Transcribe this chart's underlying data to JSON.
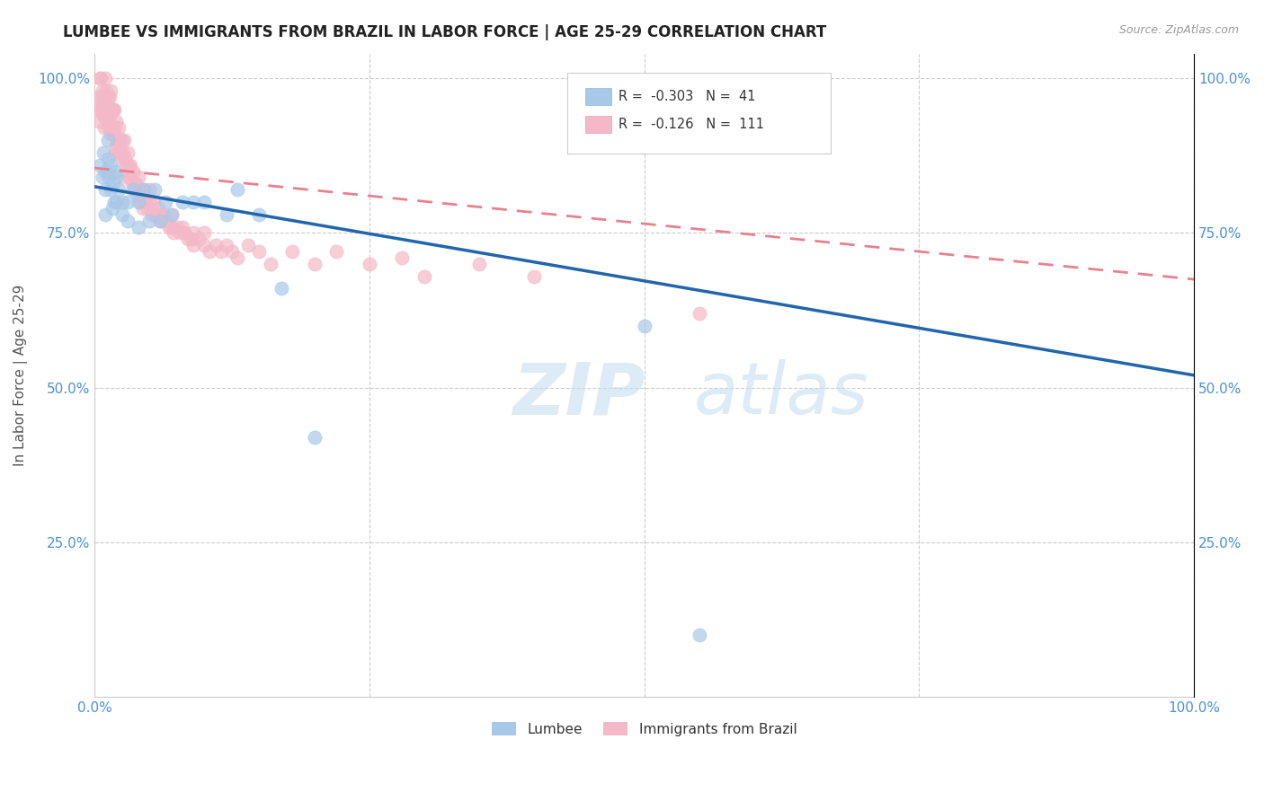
{
  "title": "LUMBEE VS IMMIGRANTS FROM BRAZIL IN LABOR FORCE | AGE 25-29 CORRELATION CHART",
  "source_text": "Source: ZipAtlas.com",
  "ylabel": "In Labor Force | Age 25-29",
  "xlim": [
    0.0,
    1.0
  ],
  "ylim": [
    0.0,
    1.04
  ],
  "x_ticks": [
    0.0,
    0.25,
    0.5,
    0.75,
    1.0
  ],
  "y_ticks": [
    0.0,
    0.25,
    0.5,
    0.75,
    1.0
  ],
  "x_tick_labels": [
    "0.0%",
    "",
    "",
    "",
    "100.0%"
  ],
  "y_tick_labels": [
    "",
    "25.0%",
    "50.0%",
    "75.0%",
    "100.0%"
  ],
  "lumbee_color": "#a8c8e8",
  "brazil_color": "#f4b8c8",
  "lumbee_line_color": "#2166ac",
  "brazil_line_color": "#f4b8c8",
  "lumbee_R": -0.303,
  "lumbee_N": 41,
  "brazil_R": -0.126,
  "brazil_N": 111,
  "legend_label_lumbee": "Lumbee",
  "legend_label_brazil": "Immigrants from Brazil",
  "lumbee_line_y0": 0.825,
  "lumbee_line_y1": 0.52,
  "brazil_line_y0": 0.855,
  "brazil_line_y1": 0.675,
  "lumbee_scatter_x": [
    0.005,
    0.007,
    0.008,
    0.01,
    0.01,
    0.01,
    0.012,
    0.012,
    0.013,
    0.015,
    0.015,
    0.016,
    0.017,
    0.018,
    0.019,
    0.02,
    0.02,
    0.022,
    0.025,
    0.025,
    0.03,
    0.03,
    0.035,
    0.04,
    0.04,
    0.045,
    0.05,
    0.055,
    0.06,
    0.065,
    0.07,
    0.08,
    0.09,
    0.1,
    0.12,
    0.13,
    0.15,
    0.17,
    0.2,
    0.5,
    0.55
  ],
  "lumbee_scatter_y": [
    0.86,
    0.84,
    0.88,
    0.85,
    0.82,
    0.78,
    0.9,
    0.87,
    0.84,
    0.86,
    0.82,
    0.79,
    0.83,
    0.8,
    0.85,
    0.84,
    0.8,
    0.82,
    0.8,
    0.78,
    0.8,
    0.77,
    0.82,
    0.8,
    0.76,
    0.82,
    0.77,
    0.82,
    0.77,
    0.8,
    0.78,
    0.8,
    0.8,
    0.8,
    0.78,
    0.82,
    0.78,
    0.66,
    0.42,
    0.6,
    0.1
  ],
  "brazil_scatter_x": [
    0.003,
    0.004,
    0.004,
    0.005,
    0.005,
    0.006,
    0.006,
    0.007,
    0.007,
    0.008,
    0.008,
    0.009,
    0.009,
    0.01,
    0.01,
    0.01,
    0.011,
    0.011,
    0.012,
    0.012,
    0.013,
    0.013,
    0.014,
    0.014,
    0.015,
    0.015,
    0.015,
    0.016,
    0.016,
    0.017,
    0.017,
    0.018,
    0.018,
    0.019,
    0.019,
    0.02,
    0.02,
    0.021,
    0.022,
    0.022,
    0.023,
    0.024,
    0.025,
    0.025,
    0.026,
    0.027,
    0.028,
    0.028,
    0.029,
    0.03,
    0.03,
    0.031,
    0.032,
    0.033,
    0.034,
    0.035,
    0.036,
    0.037,
    0.038,
    0.04,
    0.04,
    0.041,
    0.042,
    0.043,
    0.044,
    0.045,
    0.046,
    0.048,
    0.05,
    0.05,
    0.052,
    0.054,
    0.056,
    0.058,
    0.06,
    0.06,
    0.062,
    0.065,
    0.068,
    0.07,
    0.07,
    0.072,
    0.075,
    0.078,
    0.08,
    0.082,
    0.085,
    0.088,
    0.09,
    0.09,
    0.095,
    0.1,
    0.1,
    0.105,
    0.11,
    0.115,
    0.12,
    0.125,
    0.13,
    0.14,
    0.15,
    0.16,
    0.18,
    0.2,
    0.22,
    0.25,
    0.28,
    0.3,
    0.35,
    0.4,
    0.55
  ],
  "brazil_scatter_y": [
    0.97,
    0.95,
    0.93,
    1.0,
    0.97,
    0.95,
    1.0,
    0.98,
    0.95,
    0.97,
    0.94,
    0.92,
    0.97,
    1.0,
    0.97,
    0.94,
    0.98,
    0.95,
    0.97,
    0.93,
    0.95,
    0.92,
    0.97,
    0.94,
    0.98,
    0.95,
    0.91,
    0.95,
    0.92,
    0.95,
    0.91,
    0.95,
    0.91,
    0.92,
    0.88,
    0.93,
    0.89,
    0.9,
    0.92,
    0.88,
    0.9,
    0.88,
    0.9,
    0.87,
    0.88,
    0.9,
    0.87,
    0.84,
    0.86,
    0.88,
    0.85,
    0.86,
    0.84,
    0.86,
    0.83,
    0.85,
    0.83,
    0.82,
    0.83,
    0.84,
    0.81,
    0.82,
    0.8,
    0.81,
    0.79,
    0.82,
    0.8,
    0.79,
    0.82,
    0.8,
    0.78,
    0.8,
    0.78,
    0.79,
    0.78,
    0.77,
    0.78,
    0.77,
    0.76,
    0.78,
    0.76,
    0.75,
    0.76,
    0.75,
    0.76,
    0.75,
    0.74,
    0.74,
    0.75,
    0.73,
    0.74,
    0.75,
    0.73,
    0.72,
    0.73,
    0.72,
    0.73,
    0.72,
    0.71,
    0.73,
    0.72,
    0.7,
    0.72,
    0.7,
    0.72,
    0.7,
    0.71,
    0.68,
    0.7,
    0.68,
    0.62
  ]
}
